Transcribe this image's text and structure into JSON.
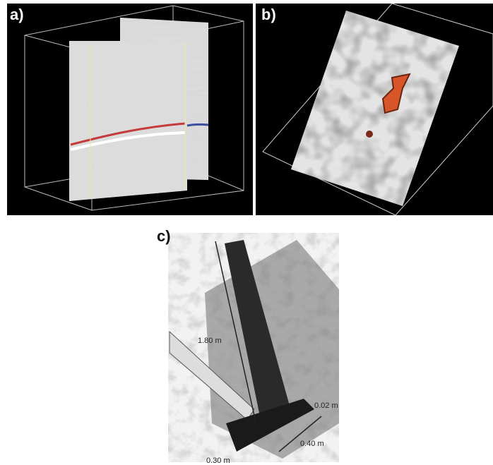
{
  "panels": [
    {
      "label": "a)"
    },
    {
      "label": "b)"
    },
    {
      "label": "c)",
      "annotations": [
        "1.80 m",
        "0.02 m",
        "0.40 m",
        "0.30 m"
      ]
    }
  ]
}
